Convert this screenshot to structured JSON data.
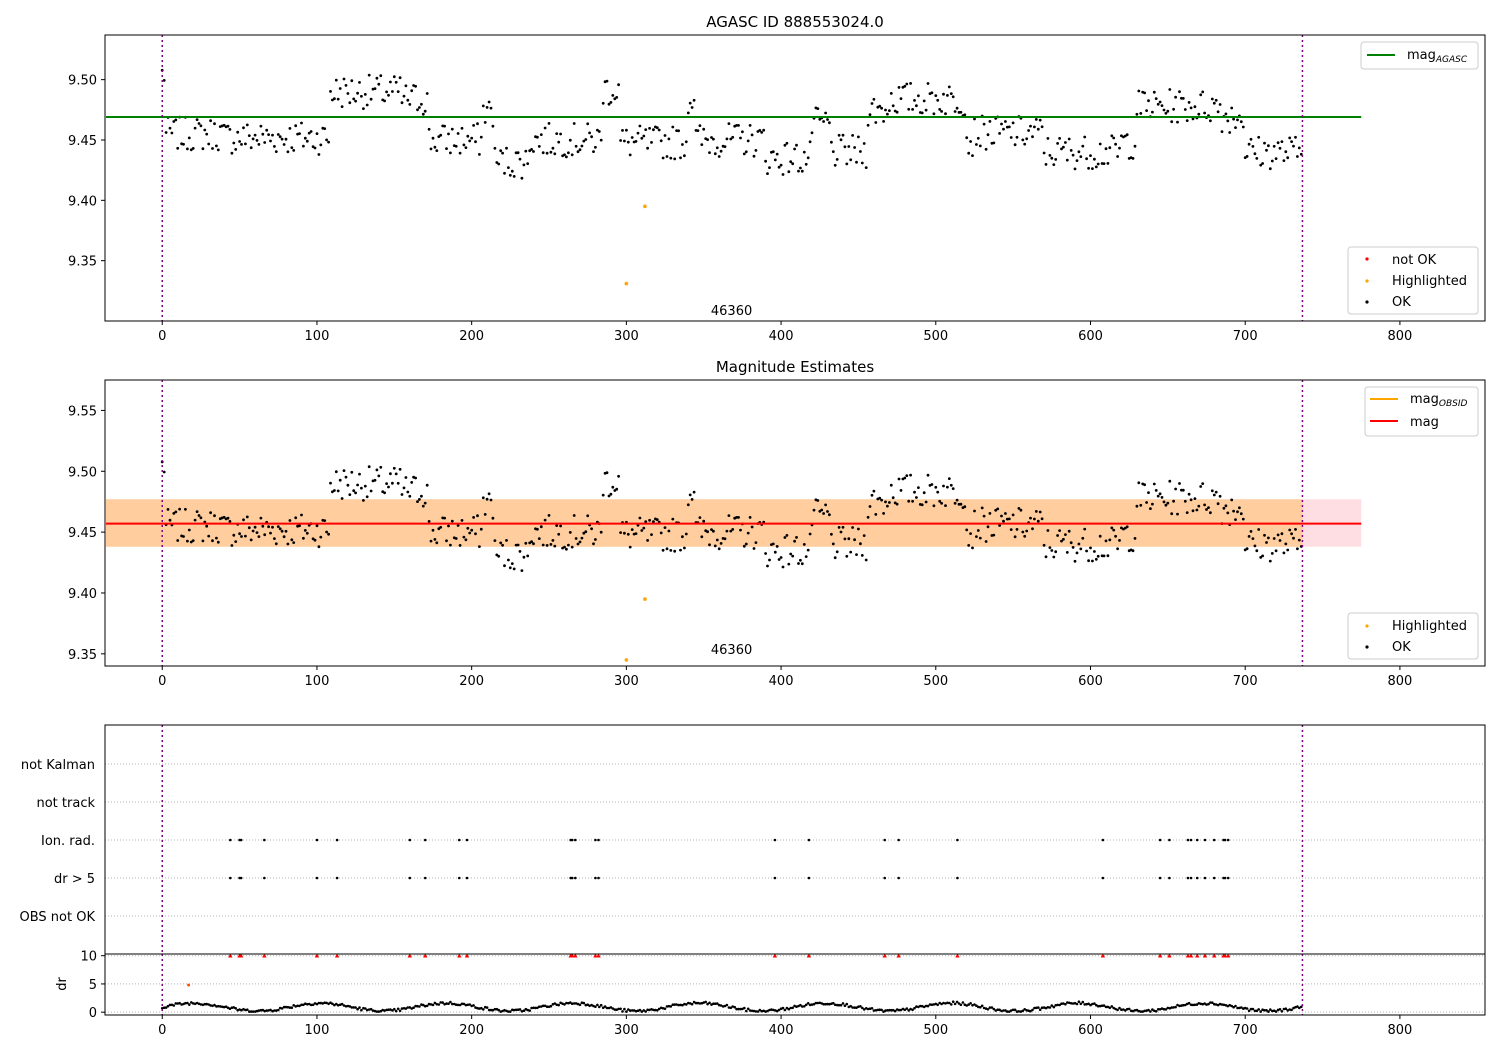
{
  "chart_data": [
    {
      "type": "scatter",
      "title": "AGASC ID 888553024.0",
      "xlim": [
        -37,
        855
      ],
      "ylim": [
        9.3,
        9.537
      ],
      "x_ticks": [
        "0",
        "100",
        "200",
        "300",
        "400",
        "500",
        "600",
        "700",
        "800"
      ],
      "y_ticks": [
        "9.35",
        "9.40",
        "9.45",
        "9.50"
      ],
      "vlines": [
        0,
        737
      ],
      "hline": {
        "label": "mag",
        "sub": "AGASC",
        "value": 9.469,
        "color": "#008000",
        "x_end": 775
      },
      "annotation": {
        "text": "46360",
        "x": 368,
        "y": 9.305
      },
      "legend_top": [
        {
          "label": "mag",
          "sub": "AGASC",
          "color": "#008000",
          "kind": "line"
        }
      ],
      "legend_bottom": [
        {
          "label": "not OK",
          "color": "#ff0000",
          "kind": "dot"
        },
        {
          "label": "Highlighted",
          "color": "#ffa500",
          "kind": "dot"
        },
        {
          "label": "OK",
          "color": "#000000",
          "kind": "dot"
        }
      ],
      "highlighted": [
        [
          300,
          9.331
        ],
        [
          312,
          9.395
        ]
      ],
      "series_generator": "magnitude"
    },
    {
      "type": "scatter",
      "title": "Magnitude Estimates",
      "xlim": [
        -37,
        855
      ],
      "ylim": [
        9.34,
        9.575
      ],
      "x_ticks": [
        "0",
        "100",
        "200",
        "300",
        "400",
        "500",
        "600",
        "700",
        "800"
      ],
      "y_ticks": [
        "9.35",
        "9.40",
        "9.45",
        "9.50",
        "9.55"
      ],
      "vlines": [
        0,
        737
      ],
      "band": {
        "low": 9.438,
        "high": 9.477,
        "x_end": 775
      },
      "hline": {
        "label": "mag",
        "value": 9.457,
        "color": "#ff0000",
        "x_end": 775
      },
      "annotation": {
        "text": "46360",
        "x": 368,
        "y": 9.35
      },
      "legend_top": [
        {
          "label": "mag",
          "sub": "OBSID",
          "color": "#ffa500",
          "kind": "line"
        },
        {
          "label": "mag",
          "color": "#ff0000",
          "kind": "line"
        }
      ],
      "legend_bottom": [
        {
          "label": "Highlighted",
          "color": "#ffa500",
          "kind": "dot"
        },
        {
          "label": "OK",
          "color": "#000000",
          "kind": "dot"
        }
      ],
      "highlighted": [
        [
          300,
          9.345
        ],
        [
          312,
          9.395
        ]
      ],
      "series_generator": "magnitude"
    },
    {
      "type": "scatter",
      "title": "",
      "xlim": [
        -37,
        855
      ],
      "flag_labels": [
        "not Kalman",
        "not track",
        "Ion. rad.",
        "dr > 5",
        "OBS not OK"
      ],
      "vlines": [
        0,
        737
      ],
      "flag_times": [
        44,
        50,
        51,
        66,
        100,
        113,
        160,
        170,
        192,
        197,
        264,
        265,
        267,
        280,
        282,
        396,
        418,
        467,
        476,
        514,
        608,
        645,
        651,
        663,
        665,
        669,
        674,
        680,
        686,
        687,
        689
      ]
    },
    {
      "type": "scatter",
      "title": "",
      "ylabel": "dr",
      "xlim": [
        -37,
        855
      ],
      "ylim": [
        -0.5,
        10.3
      ],
      "x_ticks": [
        "0",
        "100",
        "200",
        "300",
        "400",
        "500",
        "600",
        "700",
        "800"
      ],
      "y_ticks": [
        "0",
        "5",
        "10"
      ],
      "vlines": [
        0,
        737
      ],
      "outlier": [
        17,
        4.8
      ],
      "capped_value": 10,
      "series_generator": "dr"
    }
  ]
}
